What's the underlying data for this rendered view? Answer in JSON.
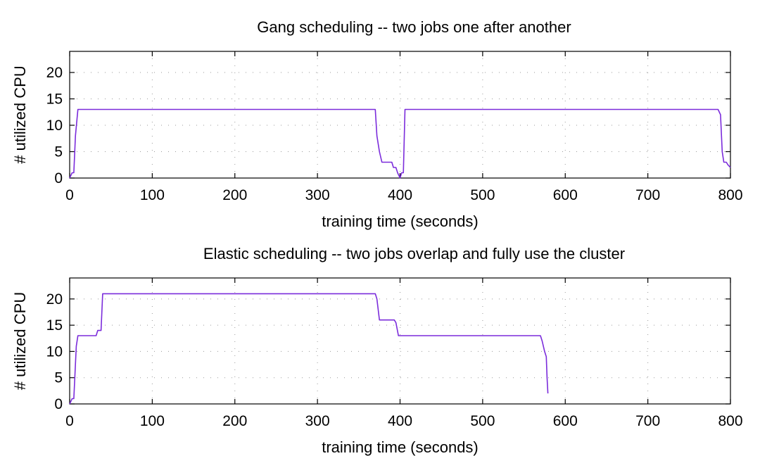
{
  "chart_data": [
    {
      "type": "line",
      "title": "Gang scheduling -- two jobs one after another",
      "xlabel": "training time (seconds)",
      "ylabel": "# utilized CPU",
      "xlim": [
        0,
        800
      ],
      "ylim": [
        0,
        24
      ],
      "xticks": [
        0,
        100,
        200,
        300,
        400,
        500,
        600,
        700,
        800
      ],
      "yticks": [
        0,
        5,
        10,
        15,
        20
      ],
      "grid": true,
      "color": "#7b2cdb",
      "series": [
        {
          "name": "utilized CPU",
          "x": [
            0,
            3,
            5,
            7,
            10,
            370,
            372,
            375,
            378,
            380,
            383,
            385,
            387,
            390,
            392,
            395,
            397,
            400,
            402,
            404,
            406,
            410,
            785,
            788,
            790,
            792,
            795,
            797,
            800
          ],
          "y": [
            0,
            1,
            1,
            8,
            13,
            13,
            8,
            5,
            3,
            3,
            3,
            3,
            3,
            3,
            2,
            2,
            1,
            0,
            1,
            1,
            13,
            13,
            13,
            12,
            5,
            3,
            3,
            2.5,
            2
          ]
        }
      ]
    },
    {
      "type": "line",
      "title": "Elastic scheduling -- two jobs overlap and fully use the cluster",
      "xlabel": "training time (seconds)",
      "ylabel": "# utilized CPU",
      "xlim": [
        0,
        800
      ],
      "ylim": [
        0,
        24
      ],
      "xticks": [
        0,
        100,
        200,
        300,
        400,
        500,
        600,
        700,
        800
      ],
      "yticks": [
        0,
        5,
        10,
        15,
        20
      ],
      "grid": true,
      "color": "#7b2cdb",
      "series": [
        {
          "name": "utilized CPU",
          "x": [
            0,
            3,
            5,
            8,
            10,
            32,
            34,
            38,
            40,
            370,
            372,
            375,
            377,
            393,
            395,
            398,
            400,
            570,
            572,
            575,
            577,
            578,
            579
          ],
          "y": [
            0,
            1,
            1,
            11,
            13,
            13,
            14,
            14,
            21,
            21,
            20,
            16,
            16,
            16,
            15.5,
            13,
            13,
            13,
            12,
            10,
            9,
            5,
            2
          ]
        }
      ]
    }
  ]
}
